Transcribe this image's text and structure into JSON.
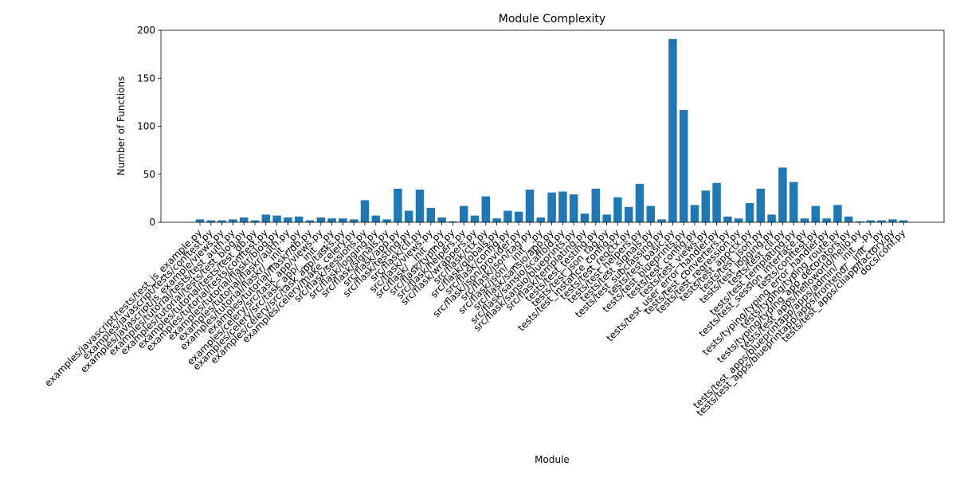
{
  "chart_data": {
    "type": "bar",
    "title": "Module Complexity",
    "x_label": "Module",
    "y_label": "Number of Functions",
    "categories": [
      "examples/javascript/tests/test_js_example.py",
      "examples/javascript/tests/conftest.py",
      "examples/javascript/js_example/views.py",
      "examples/tutorial/tests/test_auth.py",
      "examples/tutorial/tests/test_blog.py",
      "examples/tutorial/tests/test_db.py",
      "examples/tutorial/tests/conftest.py",
      "examples/tutorial/flaskr/blog.py",
      "examples/tutorial/flaskr/auth.py",
      "examples/tutorial/flaskr/__init__.py",
      "examples/tutorial/flaskr/db.py",
      "examples/celery/src/task_app/views.py",
      "examples/celery/src/task_app/__init__.py",
      "examples/celery/src/task_app/tasks.py",
      "examples/celery/make_celery.py",
      "src/flask/sessions.py",
      "src/flask/logging.py",
      "src/flask/signals.py",
      "src/flask/app.py",
      "src/flask/testing.py",
      "src/flask/cli.py",
      "src/flask/views.py",
      "src/flask/__init__.py",
      "src/flask/typing.py",
      "src/flask/helpers.py",
      "src/flask/wrappers.py",
      "src/flask/ctx.py",
      "src/flask/globals.py",
      "src/flask/config.py",
      "src/flask/json/provider.py",
      "src/flask/json/tag.py",
      "src/flask/json/__init__.py",
      "src/flask/sansio/app.py",
      "src/flask/sansio/scaffold.py",
      "src/flask/sansio/blueprints.py",
      "src/flask/templating.py",
      "tests/test_testing.py",
      "tests/test_json_tag.py",
      "tests/test_instance_config.py",
      "tests/test_reqctx.py",
      "tests/test_helpers.py",
      "tests/test_signals.py",
      "tests/test_subclassing.py",
      "tests/test_basic.py",
      "tests/test_blueprints.py",
      "tests/test_config.py",
      "tests/test_views.py",
      "tests/test_user_error_handler.py",
      "tests/test_converters.py",
      "tests/test_regression.py",
      "tests/test_appctx.py",
      "tests/test_json.py",
      "tests/test_logging.py",
      "tests/test_cli.py",
      "tests/test_templating.py",
      "tests/test_session_interface.py",
      "tests/conftest.py",
      "tests/typing/typing_error_handler.py",
      "tests/typing/typing_route.py",
      "tests/typing/typing_app_decorators.py",
      "tests/test_apps/helloworld/hello.py",
      "tests/test_apps/blueprintapp/apps/admin/__init__.py",
      "tests/test_apps/blueprintapp/apps/frontend/__init__.py",
      "tests/test_apps/cliapp/factory.py",
      "docs/conf.py"
    ],
    "values": [
      3,
      2,
      2,
      3,
      5,
      2,
      8,
      7,
      5,
      6,
      2,
      5,
      4,
      4,
      3,
      23,
      7,
      3,
      35,
      12,
      34,
      15,
      5,
      1,
      17,
      7,
      27,
      4,
      12,
      11,
      34,
      5,
      31,
      32,
      29,
      9,
      35,
      8,
      26,
      16,
      40,
      17,
      3,
      191,
      117,
      18,
      33,
      41,
      6,
      4,
      20,
      35,
      8,
      57,
      42,
      4,
      17,
      4,
      18,
      6,
      1,
      2,
      2,
      3,
      2
    ],
    "color": "#1f77b4",
    "ylim": [
      0,
      200
    ],
    "yticks": [
      0,
      50,
      100,
      150,
      200
    ],
    "grid": false
  }
}
